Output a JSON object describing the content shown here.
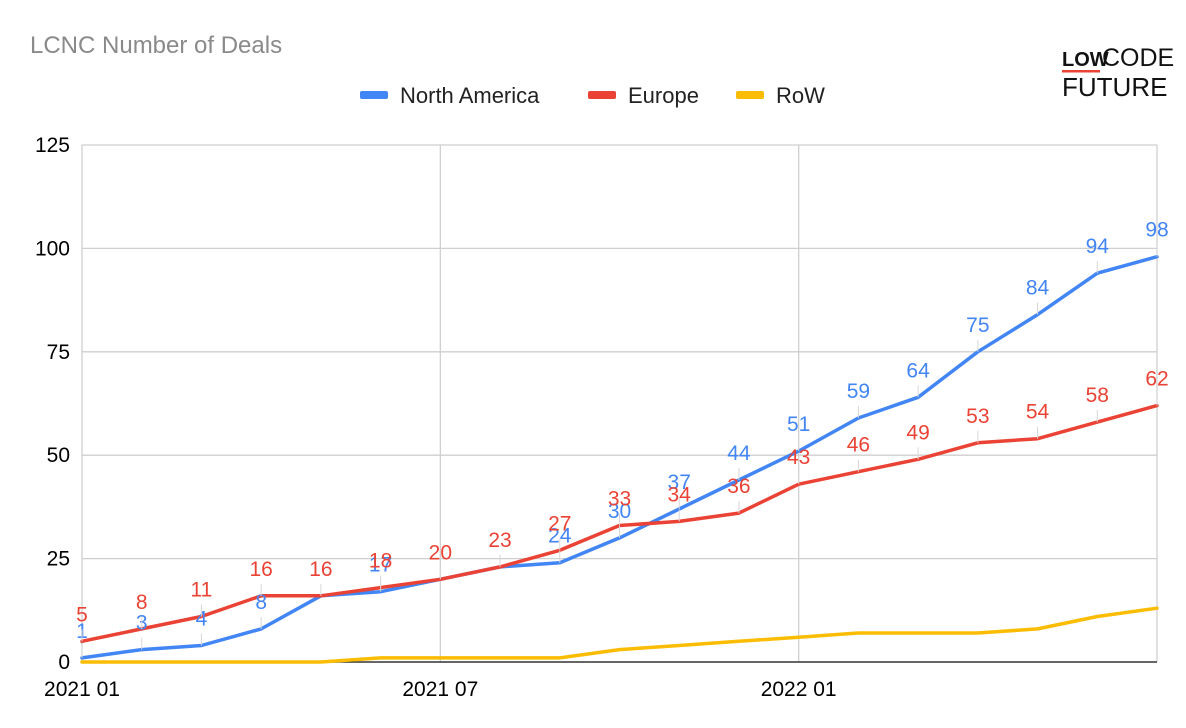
{
  "chart_data": {
    "type": "line",
    "title": "LCNC Number of Deals",
    "xlabel": "",
    "ylabel": "",
    "ylim": [
      0,
      125
    ],
    "yticks": [
      0,
      25,
      50,
      75,
      100,
      125
    ],
    "x": [
      "2021 01",
      "2021 02",
      "2021 03",
      "2021 04",
      "2021 05",
      "2021 06",
      "2021 07",
      "2021 08",
      "2021 09",
      "2021 10",
      "2021 11",
      "2021 12",
      "2022 01",
      "2022 02",
      "2022 03",
      "2022 04",
      "2022 05",
      "2022 06",
      "2022 07"
    ],
    "xtick_labels": [
      {
        "index": 0,
        "label": "2021 01"
      },
      {
        "index": 6,
        "label": "2021 07"
      },
      {
        "index": 12,
        "label": "2022 01"
      }
    ],
    "grid": true,
    "legend_position": "top-center",
    "series": [
      {
        "name": "North America",
        "color": "#4285f4",
        "values": [
          1,
          3,
          4,
          8,
          16,
          17,
          20,
          23,
          24,
          30,
          37,
          44,
          51,
          59,
          64,
          75,
          84,
          94,
          98
        ],
        "labels": [
          "1",
          "3",
          "4",
          "8",
          "",
          "17",
          "",
          "",
          "24",
          "30",
          "37",
          "44",
          "51",
          "59",
          "64",
          "75",
          "84",
          "94",
          "98"
        ]
      },
      {
        "name": "Europe",
        "color": "#ea4335",
        "values": [
          5,
          8,
          11,
          16,
          16,
          18,
          20,
          23,
          27,
          33,
          34,
          36,
          43,
          46,
          49,
          53,
          54,
          58,
          62
        ],
        "labels": [
          "5",
          "8",
          "11",
          "16",
          "16",
          "18",
          "20",
          "23",
          "27",
          "33",
          "34",
          "36",
          "43",
          "46",
          "49",
          "53",
          "54",
          "58",
          "62"
        ]
      },
      {
        "name": "RoW",
        "color": "#fbbc04",
        "values": [
          0,
          0,
          0,
          0,
          0,
          1,
          1,
          1,
          1,
          3,
          4,
          5,
          6,
          7,
          7,
          7,
          8,
          11,
          13
        ],
        "labels": []
      }
    ]
  },
  "logo": {
    "line1_left": "LOW",
    "line1_right": "CODE",
    "line2": "FUTURE",
    "accent_color": "#ea4335"
  }
}
